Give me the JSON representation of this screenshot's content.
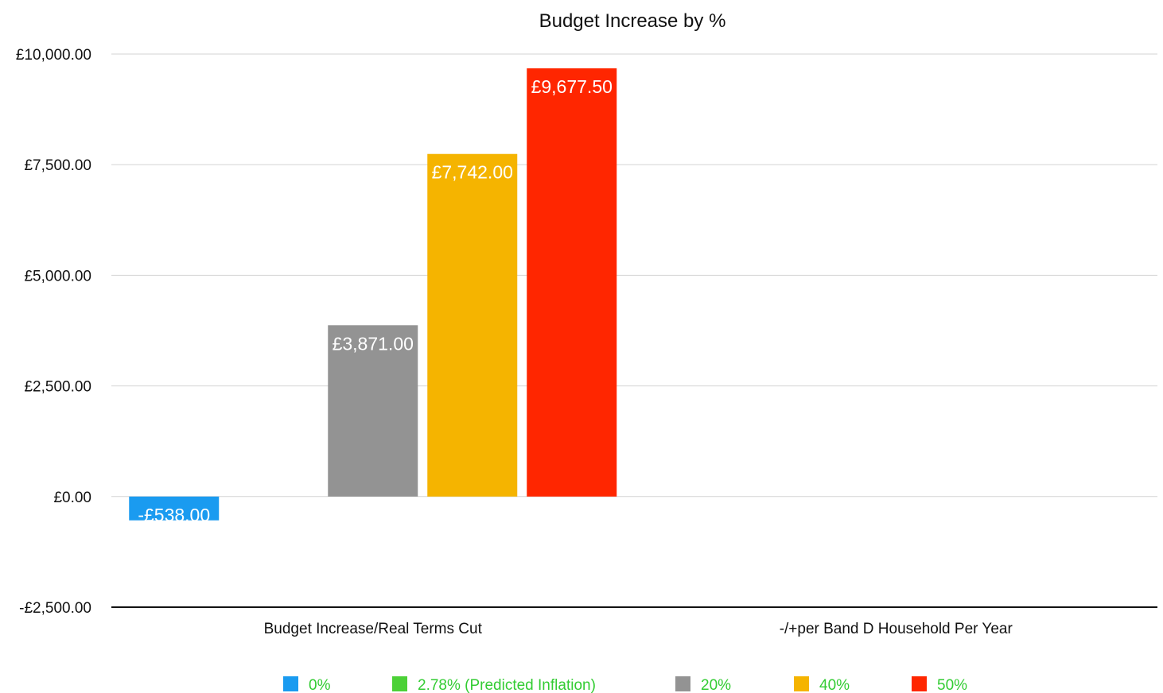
{
  "chart_data": {
    "type": "bar",
    "title": "Budget Increase by %",
    "xlabel": "",
    "ylabel": "",
    "ylim": [
      -2500,
      10000
    ],
    "yticks": [
      10000,
      7500,
      5000,
      2500,
      0,
      -2500
    ],
    "ytick_labels": [
      "£10,000.00",
      "£7,500.00",
      "£5,000.00",
      "£2,500.00",
      "£0.00",
      "-£2,500.00"
    ],
    "grid": true,
    "legend_position": "bottom",
    "categories": [
      "Budget Increase/Real Terms Cut",
      "-/+per Band D Household Per Year"
    ],
    "series": [
      {
        "name": "0%",
        "color": "#1a9bf0",
        "values": [
          -538,
          0
        ],
        "labels": [
          "-£538.00",
          null
        ]
      },
      {
        "name": "2.78% (Predicted Inflation)",
        "color": "#4cd137",
        "values": [
          0,
          0
        ],
        "labels": [
          null,
          null
        ]
      },
      {
        "name": "20%",
        "color": "#939393",
        "values": [
          3871,
          0
        ],
        "labels": [
          "£3,871.00",
          null
        ]
      },
      {
        "name": "40%",
        "color": "#f5b400",
        "values": [
          7742,
          0
        ],
        "labels": [
          "£7,742.00",
          null
        ]
      },
      {
        "name": "50%",
        "color": "#ff2600",
        "values": [
          9677.5,
          0
        ],
        "labels": [
          "£9,677.50",
          null
        ]
      }
    ],
    "legend_text_color": "#33cc33"
  }
}
